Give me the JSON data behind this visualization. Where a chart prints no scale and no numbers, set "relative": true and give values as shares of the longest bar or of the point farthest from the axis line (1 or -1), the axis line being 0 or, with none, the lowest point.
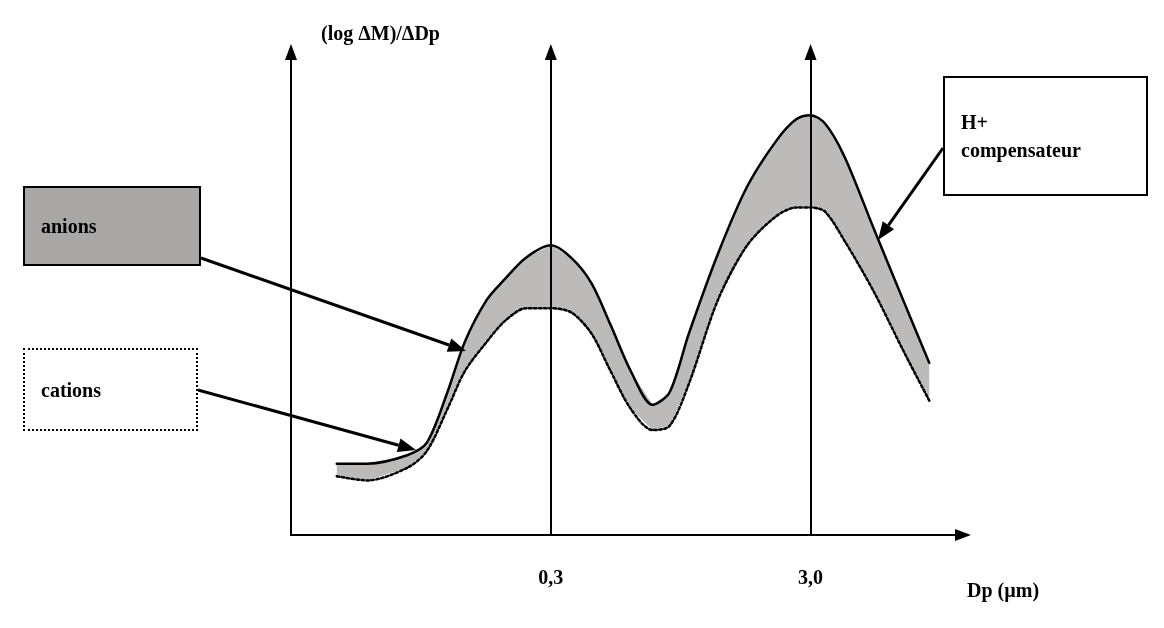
{
  "chart_data": {
    "type": "line",
    "xlabel": "Dp (µm)",
    "ylabel": "(log ΔM)/ΔDp",
    "relative": true,
    "log": "x",
    "xlim": [
      0.03,
      12
    ],
    "xticks": [
      {
        "value": 0.3,
        "label": "0,3"
      },
      {
        "value": 3,
        "label": "3,0"
      }
    ],
    "grid": false,
    "marker": "none",
    "x": [
      0.045,
      0.059,
      0.084,
      0.1,
      0.12,
      0.14,
      0.17,
      0.2,
      0.24,
      0.3,
      0.36,
      0.43,
      0.51,
      0.61,
      0.74,
      0.86,
      1.02,
      1.32,
      1.71,
      2.22,
      2.64,
      3,
      3.41,
      4.06,
      5.25,
      6.81,
      8.59
    ],
    "series": [
      {
        "color": "#000000",
        "line_style": "solid",
        "values": [
          0.17,
          0.17,
          0.19,
          0.22,
          0.34,
          0.46,
          0.56,
          0.61,
          0.66,
          0.69,
          0.66,
          0.6,
          0.5,
          0.39,
          0.31,
          0.34,
          0.48,
          0.67,
          0.83,
          0.94,
          0.99,
          1.0,
          0.98,
          0.9,
          0.73,
          0.56,
          0.41
        ],
        "lower": [
          0.14,
          0.13,
          0.16,
          0.2,
          0.3,
          0.39,
          0.46,
          0.51,
          0.54,
          0.54,
          0.53,
          0.48,
          0.39,
          0.3,
          0.25,
          0.26,
          0.36,
          0.56,
          0.69,
          0.76,
          0.78,
          0.78,
          0.77,
          0.7,
          0.58,
          0.44,
          0.32
        ],
        "upper": [
          0.17,
          0.17,
          0.19,
          0.22,
          0.34,
          0.46,
          0.56,
          0.61,
          0.66,
          0.69,
          0.66,
          0.6,
          0.5,
          0.39,
          0.31,
          0.34,
          0.48,
          0.67,
          0.83,
          0.94,
          0.99,
          1.0,
          0.98,
          0.9,
          0.73,
          0.56,
          0.41
        ]
      },
      {
        "color": "#000000",
        "line_style": "dotted",
        "values": [
          0.14,
          0.13,
          0.16,
          0.2,
          0.3,
          0.39,
          0.46,
          0.51,
          0.54,
          0.54,
          0.53,
          0.48,
          0.39,
          0.3,
          0.25,
          0.26,
          0.36,
          0.56,
          0.69,
          0.76,
          0.78,
          0.78,
          0.77,
          0.7,
          0.58,
          0.44,
          0.32
        ]
      }
    ],
    "ref_lines": [
      {
        "axis": "x",
        "value": 0.3
      },
      {
        "axis": "x",
        "value": 3
      }
    ],
    "annotations": [
      "anions",
      "cations",
      "H+ compensateur"
    ]
  }
}
